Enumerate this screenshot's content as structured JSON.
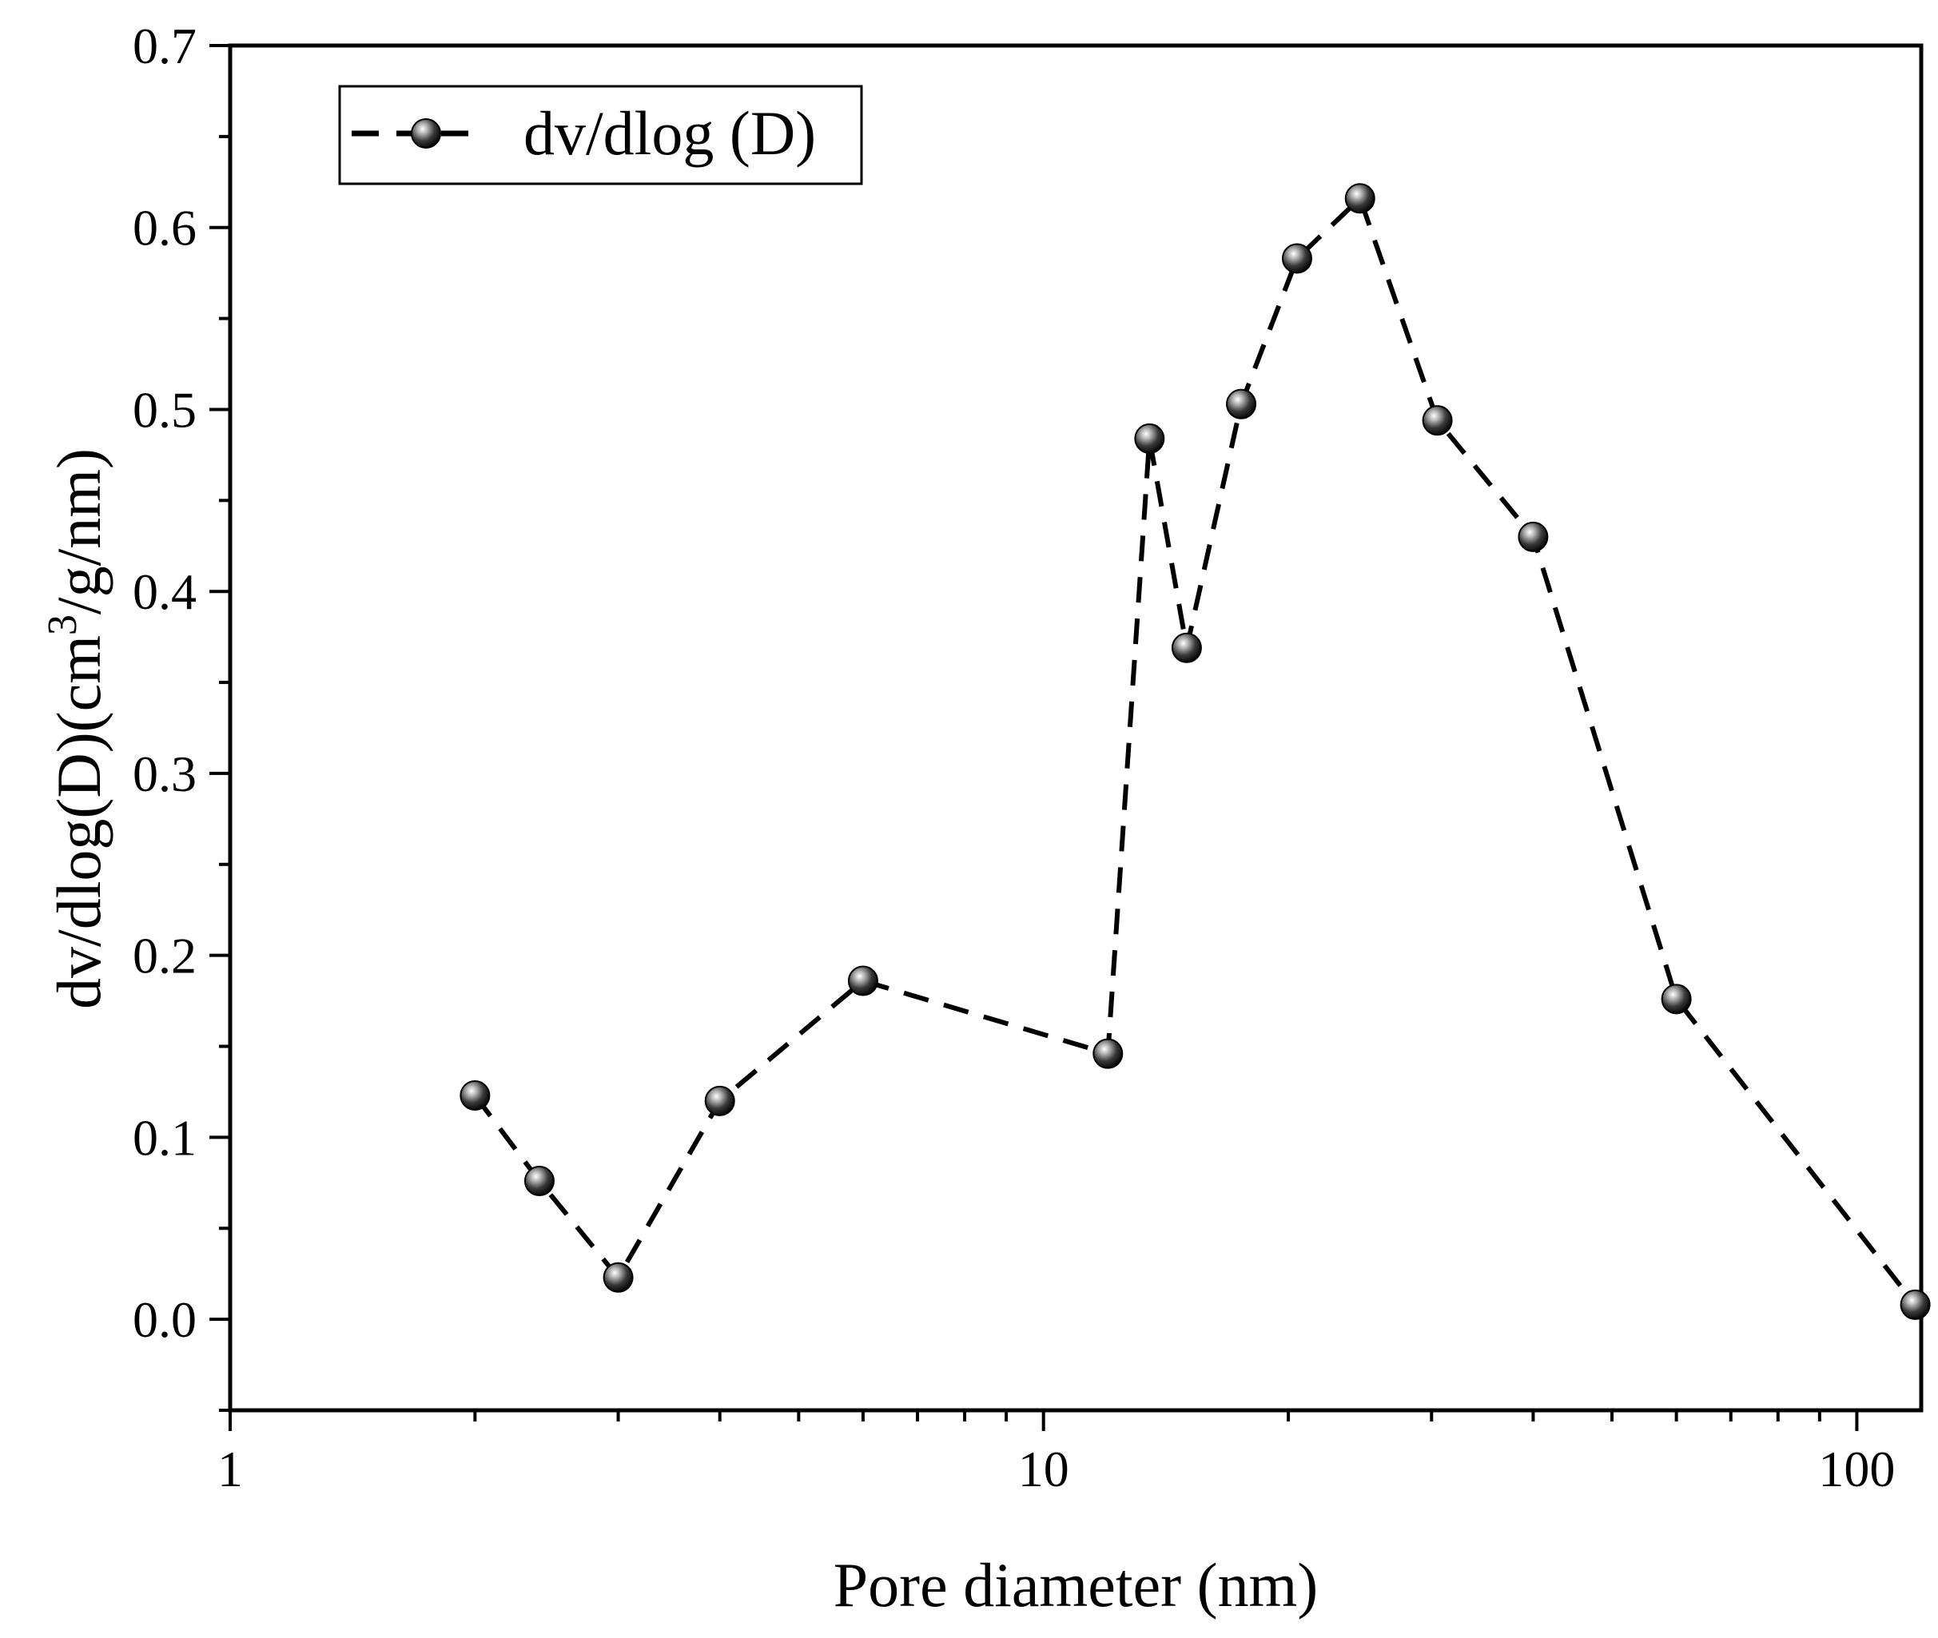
{
  "chart_data": {
    "type": "line",
    "xlabel": "Pore diameter (nm)",
    "ylabel_main": "dv/dlog(D)(cm",
    "ylabel_sup": "3",
    "ylabel_tail": "/g/nm)",
    "x_scale": "log",
    "xlim": [
      1,
      120
    ],
    "ylim": [
      -0.05,
      0.7
    ],
    "x_ticks": [
      1,
      10,
      100
    ],
    "x_tick_labels": [
      "1",
      "10",
      "100"
    ],
    "y_ticks": [
      0.0,
      0.1,
      0.2,
      0.3,
      0.4,
      0.5,
      0.6,
      0.7
    ],
    "y_tick_labels": [
      "0.0",
      "0.1",
      "0.2",
      "0.3",
      "0.4",
      "0.5",
      "0.6",
      "0.7"
    ],
    "grid": false,
    "legend_position": "top-left",
    "line_style": "dashed",
    "marker": "sphere",
    "series": [
      {
        "name": "dv/dlog (D)",
        "color": "#000000",
        "x": [
          2.0,
          2.4,
          3.0,
          4.0,
          6.0,
          12.0,
          13.5,
          15.0,
          17.5,
          20.5,
          24.5,
          30.5,
          40.0,
          60.0,
          118.0
        ],
        "y": [
          0.123,
          0.076,
          0.023,
          0.12,
          0.186,
          0.146,
          0.484,
          0.369,
          0.503,
          0.583,
          0.616,
          0.494,
          0.43,
          0.176,
          0.008
        ]
      }
    ]
  }
}
